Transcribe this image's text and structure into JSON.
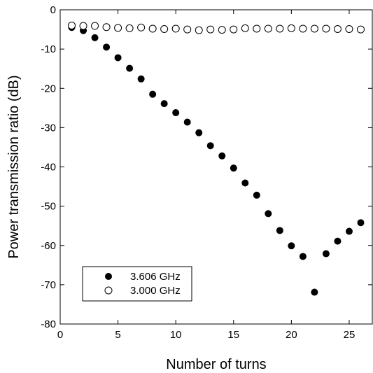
{
  "chart_data": {
    "type": "scatter",
    "xlabel": "Number of turns",
    "ylabel": "Power transmission ratio (dB)",
    "xlim": [
      0,
      27
    ],
    "ylim": [
      -80,
      0
    ],
    "xticks": [
      0,
      5,
      10,
      15,
      20,
      25
    ],
    "yticks": [
      0,
      -10,
      -20,
      -30,
      -40,
      -50,
      -60,
      -70,
      -80
    ],
    "grid": false,
    "legend_position": "bottom-left",
    "series": [
      {
        "name": "3.606 GHz",
        "marker": "filled-circle",
        "color": "#000000",
        "x": [
          1,
          2,
          3,
          4,
          5,
          6,
          7,
          8,
          9,
          10,
          11,
          12,
          13,
          14,
          15,
          16,
          17,
          18,
          19,
          20,
          21,
          22,
          23,
          24,
          25,
          26
        ],
        "y": [
          -4.5,
          -5.3,
          -7.1,
          -9.5,
          -12.2,
          -14.9,
          -17.6,
          -21.5,
          -23.9,
          -26.2,
          -28.6,
          -31.3,
          -34.6,
          -37.2,
          -40.3,
          -44.1,
          -47.2,
          -51.9,
          -56.2,
          -60.1,
          -62.8,
          -71.9,
          -62.1,
          -58.9,
          -56.4,
          -54.2
        ]
      },
      {
        "name": "3.000 GHz",
        "marker": "open-circle",
        "color": "#000000",
        "x": [
          1,
          2,
          3,
          4,
          5,
          6,
          7,
          8,
          9,
          10,
          11,
          12,
          13,
          14,
          15,
          16,
          17,
          18,
          19,
          20,
          21,
          22,
          23,
          24,
          25,
          26
        ],
        "y": [
          -4.0,
          -4.1,
          -4.1,
          -4.4,
          -4.6,
          -4.7,
          -4.5,
          -4.8,
          -4.9,
          -4.8,
          -5.0,
          -5.2,
          -5.0,
          -5.1,
          -5.0,
          -4.7,
          -4.8,
          -4.8,
          -4.8,
          -4.7,
          -4.8,
          -4.8,
          -4.8,
          -4.9,
          -4.9,
          -5.0
        ]
      }
    ]
  }
}
